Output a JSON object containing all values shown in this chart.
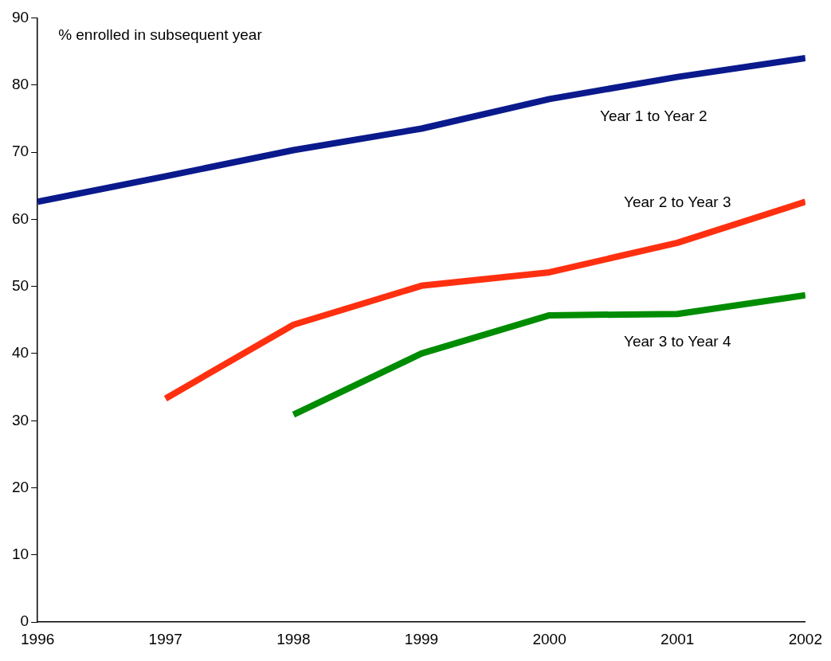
{
  "chart_data": {
    "type": "line",
    "ylabel": "% enrolled in subsequent year",
    "x": [
      1996,
      1997,
      1998,
      1999,
      2000,
      2001,
      2002
    ],
    "xlim": [
      1996,
      2002
    ],
    "xticks": [
      1996,
      1997,
      1998,
      1999,
      2000,
      2001,
      2002
    ],
    "ylim": [
      0,
      90
    ],
    "yticks": [
      0,
      10,
      20,
      30,
      40,
      50,
      60,
      70,
      80,
      90
    ],
    "grid": false,
    "legend": false,
    "marker": "none",
    "line_style": "solid",
    "series": [
      {
        "name": "Year 1 to Year 2",
        "color": "#0a1a8c",
        "values": [
          62.6,
          66.4,
          70.3,
          73.5,
          77.9,
          81.2,
          84.0
        ]
      },
      {
        "name": "Year 2 to Year 3",
        "color": "#ff3010",
        "values": [
          null,
          33.3,
          44.3,
          50.1,
          52.1,
          56.5,
          62.6
        ]
      },
      {
        "name": "Year 3 to Year 4",
        "color": "#008c00",
        "values": [
          null,
          null,
          30.9,
          40.0,
          45.7,
          45.9,
          48.7
        ]
      }
    ]
  }
}
